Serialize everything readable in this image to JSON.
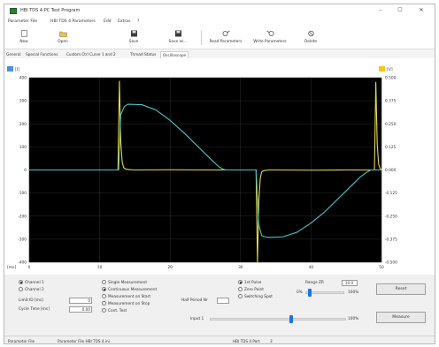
{
  "window": {
    "title": "HBI TDS 4 PC Test Program",
    "controls": {
      "minimize": "–",
      "maximize": "☐",
      "close": "✕"
    }
  },
  "menu": {
    "items": [
      "Parameter File",
      "HBI TDS 4 Parameters",
      "Edit",
      "Extras",
      "?"
    ]
  },
  "toolbar": {
    "buttons": [
      {
        "label": "New",
        "icon": "new-file-icon"
      },
      {
        "label": "Open",
        "icon": "open-folder-icon"
      },
      {
        "label": "Save",
        "icon": "save-icon"
      },
      {
        "label": "Save as...",
        "icon": "save-as-icon"
      },
      {
        "label": "Read Parameters",
        "icon": "read-parameters-icon"
      },
      {
        "label": "Write Parameters",
        "icon": "write-parameters-icon"
      },
      {
        "label": "Delete",
        "icon": "delete-icon"
      }
    ]
  },
  "tabs": [
    "General",
    "Special Functions",
    "Custom Ctrl Curve 1 and 2",
    "Thread Status",
    "Oscilloscope"
  ],
  "chart_data": {
    "type": "line",
    "x_unit": "[ms]",
    "x_ticks": [
      "0",
      "10",
      "20",
      "30",
      "40",
      "50"
    ],
    "x_range": [
      0,
      50
    ],
    "y_left_unit": "[I]",
    "y_left_ticks": [
      "400",
      "300",
      "200",
      "100",
      "0",
      "-100",
      "-200",
      "-300",
      "-400"
    ],
    "y_left_range": [
      -400,
      400
    ],
    "y_right_unit": "[V]",
    "y_right_ticks": [
      "0.500",
      "0.375",
      "0.250",
      "0.125",
      "0.000",
      "-0.125",
      "-0.250",
      "-0.375",
      "-0.500"
    ],
    "y_right_range": [
      -0.5,
      0.5
    ],
    "grid": true,
    "background": "#000000",
    "series": [
      {
        "color": "#e6d84a",
        "axis": "left",
        "x": [
          0,
          12.6,
          12.8,
          13.0,
          13.2,
          13.4,
          13.7,
          14.0,
          15.0,
          20.0,
          25.0,
          29.0,
          30.0,
          31.0,
          32.2,
          32.4,
          32.6,
          32.8,
          33.0,
          33.3,
          34.0,
          35.0,
          40.0,
          45.0,
          48.5,
          49.0,
          49.2,
          49.4,
          49.6,
          49.8,
          50.0
        ],
        "y": [
          0,
          0,
          385,
          120,
          35,
          10,
          4,
          2,
          0,
          1,
          0,
          0,
          0,
          0,
          0,
          -400,
          -130,
          -35,
          -8,
          -3,
          0,
          0,
          -1,
          0,
          0,
          0,
          380,
          110,
          25,
          6,
          2
        ]
      },
      {
        "color": "#4fc3c7",
        "axis": "left",
        "x": [
          0,
          12.7,
          13.0,
          13.5,
          14.0,
          16.0,
          18.0,
          20.0,
          22.0,
          24.0,
          26.0,
          27.0,
          27.6,
          28.0,
          30.0,
          32.2,
          32.6,
          33.0,
          33.5,
          34.0,
          36.0,
          38.0,
          40.0,
          42.0,
          44.0,
          46.0,
          47.0,
          48.0,
          48.5,
          50.0
        ],
        "y": [
          0,
          0,
          240,
          275,
          285,
          283,
          260,
          215,
          160,
          100,
          40,
          12,
          2,
          0,
          0,
          0,
          -240,
          -285,
          -290,
          -292,
          -290,
          -270,
          -230,
          -180,
          -120,
          -60,
          -30,
          -8,
          0,
          0
        ]
      }
    ]
  },
  "controls": {
    "channels": [
      {
        "label": "Channel 1",
        "selected": true
      },
      {
        "label": "Channel 2",
        "selected": false
      }
    ],
    "measure_modes": [
      {
        "label": "Single Measurement",
        "selected": false
      },
      {
        "label": "Continuous Measurement",
        "selected": true
      },
      {
        "label": "Measurement on Start",
        "selected": false
      },
      {
        "label": "Measurement on Stop",
        "selected": false
      },
      {
        "label": "Cont. Test",
        "selected": false
      }
    ],
    "trigger_modes": [
      {
        "label": "1st Pulse",
        "selected": true
      },
      {
        "label": "Zero Point",
        "selected": false
      },
      {
        "label": "Switching Spot",
        "selected": false
      }
    ],
    "limit_label": "Limit ID [ms]",
    "limit_value": "0",
    "cycle_label": "Cycle Time [ms]",
    "cycle_value": "0.00",
    "half_period_label": "Half Period Nr",
    "half_period_value": "",
    "range_label": "Range ZR",
    "range_value": "10.0",
    "scale_min": "0%",
    "scale_max": "100%",
    "scale_level": 0.12,
    "input_label": "Input 1",
    "input_max": "100%",
    "input_level": 0.6,
    "reset_button": "Reset",
    "measure_button": "Measure"
  },
  "status": {
    "parameter_label": "Parameter File",
    "parameter_value": "Parameter File HBI TDS 4.ini",
    "device": "HBI TDS 4 Port",
    "port": "3"
  },
  "colors": {
    "current_trace": "#e6d84a",
    "voltage_trace": "#4fc3c7",
    "axis_left_marker": "#4a90e2",
    "axis_right_marker": "#f5c518"
  }
}
